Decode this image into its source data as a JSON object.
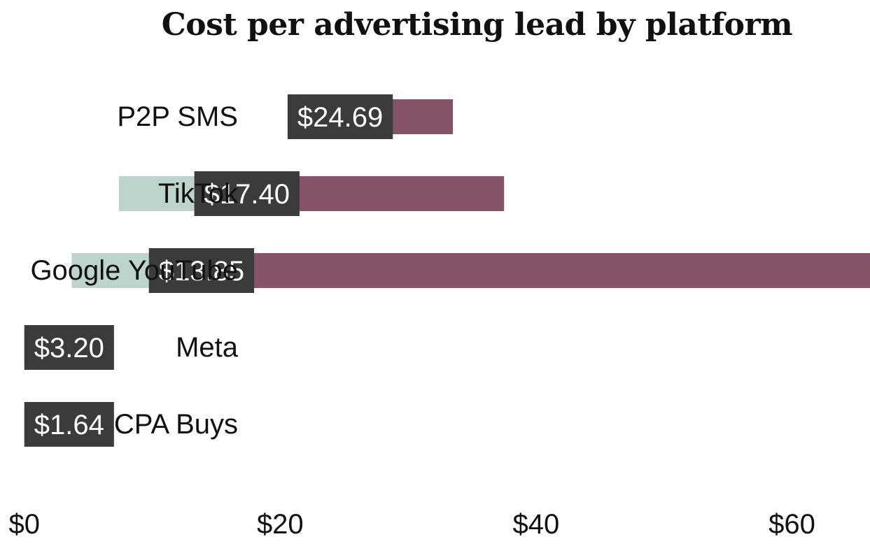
{
  "chart_data": {
    "type": "bar",
    "title": "Cost per advertising lead by platform",
    "xlabel": "",
    "ylabel": "",
    "categories": [
      "P2P SMS",
      "TikTok",
      "Google YouTube",
      "Meta",
      "CPA Buys"
    ],
    "series": [
      {
        "low": 33.5,
        "high": 33.5,
        "value": 24.69,
        "label": "$24.69"
      },
      {
        "low": 7.4,
        "high": 37.5,
        "value": 17.4,
        "label": "$17.40"
      },
      {
        "low": 3.7,
        "high": 66.1,
        "value": 13.85,
        "label": "$13.85"
      },
      {
        "low": 0.0,
        "high": 0.0,
        "value": 3.2,
        "label": "$3.20"
      },
      {
        "low": 0.0,
        "high": 0.0,
        "value": 1.64,
        "label": "$1.64"
      }
    ],
    "xlim": [
      -1.9,
      66.1
    ],
    "xticks": [
      {
        "value": 0,
        "label": "$0"
      },
      {
        "value": 20,
        "label": "$20"
      },
      {
        "value": 40,
        "label": "$40"
      },
      {
        "value": 60,
        "label": "$60"
      }
    ],
    "colors": {
      "lower_range": "#bdd4ce",
      "upper_range": "#85546b",
      "value_box": "#3b3b3b",
      "value_text": "#ffffff",
      "axis_text": "#111111"
    },
    "grid": false,
    "legend": "none"
  }
}
